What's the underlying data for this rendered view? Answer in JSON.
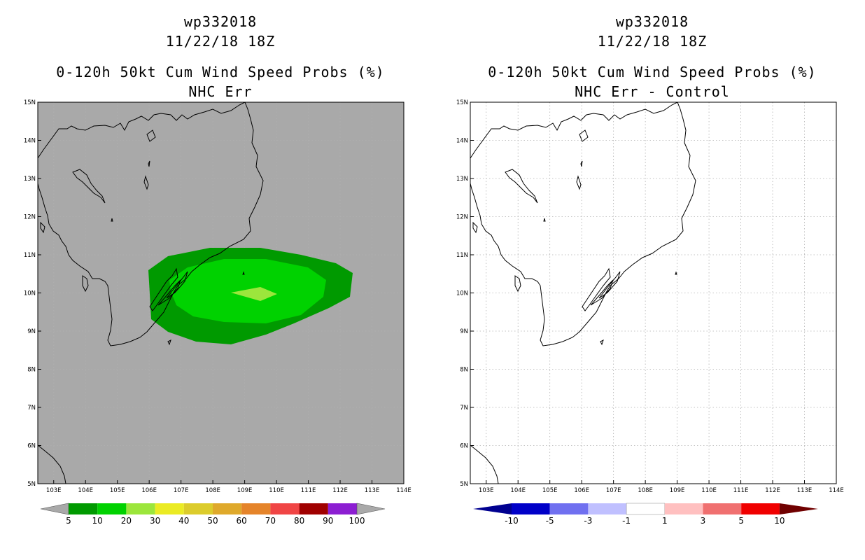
{
  "left_panel": {
    "storm_id": "wp332018",
    "datetime": "11/22/18 18Z",
    "title": "0-120h 50kt Cum Wind Speed Probs (%)",
    "subtitle": "NHC Err",
    "background_color": "#a9a9a9",
    "contours": [
      {
        "level": 5,
        "color": "#009a00"
      },
      {
        "level": 10,
        "color": "#00d200"
      },
      {
        "level": 20,
        "color": "#9ce63c"
      }
    ],
    "colorbar": {
      "labels": [
        "5",
        "10",
        "20",
        "30",
        "40",
        "50",
        "60",
        "70",
        "80",
        "90",
        "100"
      ],
      "colors": [
        "#009a00",
        "#00d200",
        "#9ce63c",
        "#ebeb24",
        "#dccc2c",
        "#dfa92b",
        "#e5842a",
        "#f04545",
        "#a00000",
        "#8c1ed2"
      ],
      "end_color": "#a9a9a9"
    }
  },
  "right_panel": {
    "storm_id": "wp332018",
    "datetime": "11/22/18 18Z",
    "title": "0-120h 50kt Cum Wind Speed Probs (%)",
    "subtitle": "NHC Err - Control",
    "background_color": "#ffffff",
    "colorbar": {
      "labels": [
        "-10",
        "-5",
        "-3",
        "-1",
        "1",
        "3",
        "5",
        "10"
      ],
      "colors": [
        "#0000c8",
        "#7070f0",
        "#c0c0ff",
        "#ffffff",
        "#ffc0c0",
        "#f07070",
        "#f00000"
      ],
      "low_end_color": "#000090",
      "high_end_color": "#700000"
    }
  },
  "map": {
    "lon_min": 102.5,
    "lon_max": 114,
    "lat_min": 5,
    "lat_max": 15,
    "lon_ticks": [
      "103E",
      "104E",
      "105E",
      "106E",
      "107E",
      "108E",
      "109E",
      "110E",
      "111E",
      "112E",
      "113E",
      "114E"
    ],
    "lat_ticks": [
      "5N",
      "6N",
      "7N",
      "8N",
      "9N",
      "10N",
      "11N",
      "12N",
      "13N",
      "14N",
      "15N"
    ]
  }
}
